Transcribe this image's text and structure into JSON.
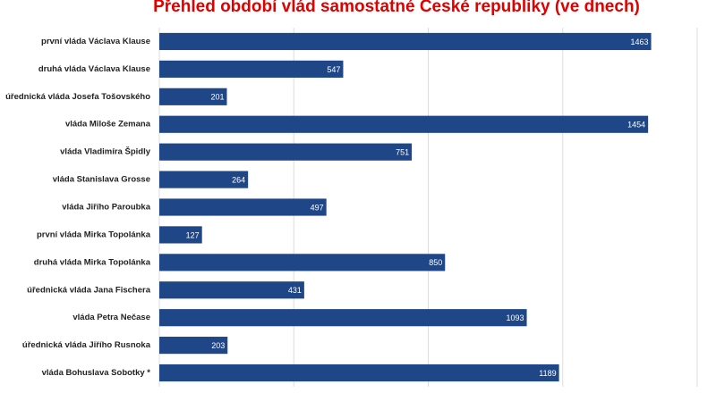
{
  "chart_data": {
    "type": "bar",
    "orientation": "horizontal",
    "title": "Přehled období vlád samostatné České republiky (ve dnech)",
    "categories": [
      "první vláda Václava Klause",
      "druhá vláda Václava Klause",
      "úřednická vláda Josefa Tošovského",
      "vláda Miloše Zemana",
      "vláda Vladimíra Špidly",
      "vláda Stanislava Grosse",
      "vláda Jiřího Paroubka",
      "první vláda Mirka Topolánka",
      "druhá vláda Mirka Topolánka",
      "úřednická vláda Jana Fischera",
      "vláda Petra Nečase",
      "úřednická vláda Jiřího Rusnoka",
      "vláda Bohuslava Sobotky *"
    ],
    "values": [
      1463,
      547,
      201,
      1454,
      751,
      264,
      497,
      127,
      850,
      431,
      1093,
      203,
      1189
    ],
    "color": "#1f4788",
    "xlim": [
      0,
      1600
    ],
    "xticks": [
      0,
      400,
      800,
      1200,
      1600
    ],
    "grid": true
  }
}
